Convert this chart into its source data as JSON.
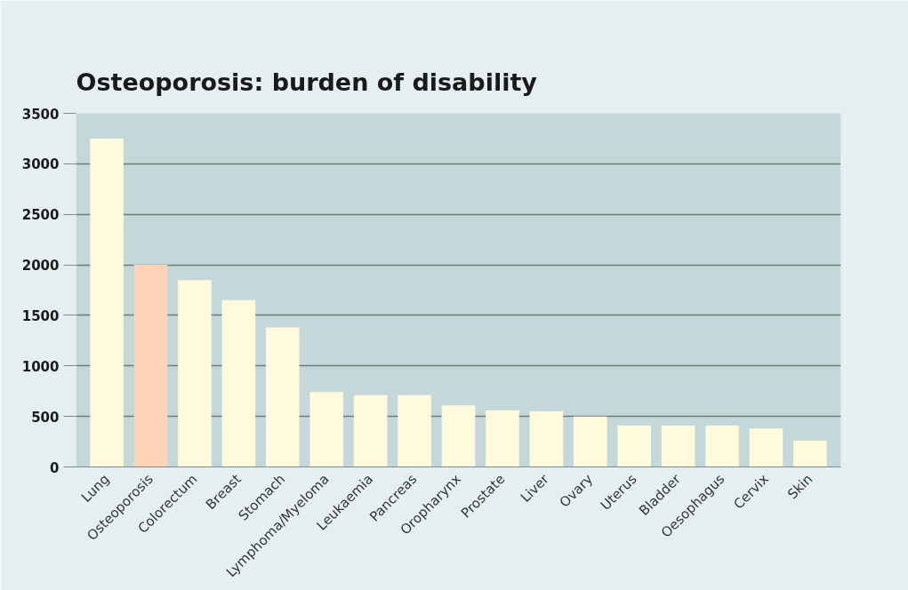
{
  "chart_data": {
    "type": "bar",
    "title": "Osteoporosis: burden of disability",
    "categories": [
      "Lung",
      "Osteoporosis",
      "Colorectum",
      "Breast",
      "Stomach",
      "Lymphoma/Myeloma",
      "Leukaemia",
      "Pancreas",
      "Oropharynx",
      "Prostate",
      "Liver",
      "Ovary",
      "Uterus",
      "Bladder",
      "Oesophagus",
      "Cervix",
      "Skin"
    ],
    "values": [
      3250,
      2000,
      1850,
      1650,
      1380,
      740,
      710,
      710,
      610,
      560,
      550,
      500,
      410,
      410,
      410,
      380,
      260
    ],
    "colors": [
      "#fff9dd",
      "#ffd3b8",
      "#fff9dd",
      "#fff9dd",
      "#fff9dd",
      "#fff9dd",
      "#fff9dd",
      "#fff9dd",
      "#fff9dd",
      "#fff9dd",
      "#fff9dd",
      "#fff9dd",
      "#fff9dd",
      "#fff9dd",
      "#fff9dd",
      "#fff9dd",
      "#fff9dd"
    ],
    "ylim": [
      0,
      3500
    ],
    "yticks": [
      0,
      500,
      1000,
      1500,
      2000,
      2500,
      3000,
      3500
    ],
    "grid": "y"
  }
}
